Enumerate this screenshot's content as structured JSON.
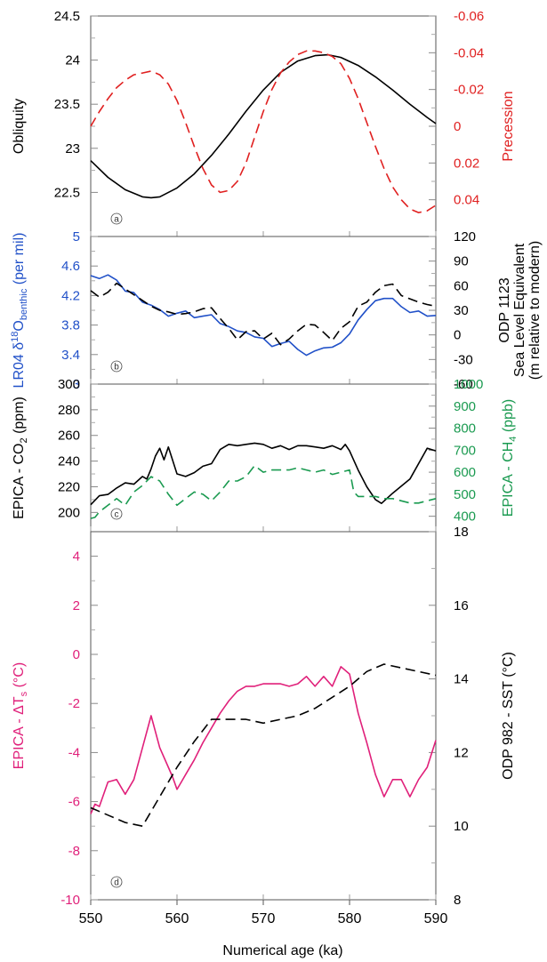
{
  "figure": {
    "xlabel": "Numerical age (ka)",
    "xlim": [
      550,
      590
    ],
    "xticks": [
      550,
      560,
      570,
      580,
      590
    ]
  },
  "chart_data": [
    {
      "type": "line",
      "panel_label": "a",
      "xlim": [
        550,
        590
      ],
      "left_axis": {
        "label": "Obliquity",
        "color": "#000000",
        "lim": [
          22.0,
          24.5
        ],
        "inverted": false,
        "ticks": [
          "22.5",
          "23",
          "23.5",
          "24",
          "24.5"
        ],
        "tick_values": [
          22.5,
          23.0,
          23.5,
          24.0,
          24.5
        ]
      },
      "right_axis": {
        "label": "Precession",
        "color": "#e02020",
        "lim": [
          0.06,
          -0.06
        ],
        "inverted": true,
        "ticks": [
          "-0.06",
          "-0.04",
          "-0.02",
          "0",
          "0.02",
          "0.04"
        ],
        "tick_values": [
          -0.06,
          -0.04,
          -0.02,
          0.0,
          0.02,
          0.04
        ]
      },
      "series": [
        {
          "axis": "left",
          "color": "#000000",
          "dash": "solid",
          "x": [
            550,
            552,
            554,
            556,
            557,
            558,
            560,
            562,
            564,
            566,
            568,
            570,
            572,
            574,
            576,
            577.5,
            579,
            581,
            583,
            585,
            587,
            589,
            590
          ],
          "y": [
            22.86,
            22.67,
            22.53,
            22.45,
            22.44,
            22.45,
            22.55,
            22.71,
            22.92,
            23.16,
            23.42,
            23.66,
            23.86,
            23.99,
            24.05,
            24.06,
            24.03,
            23.94,
            23.81,
            23.66,
            23.5,
            23.35,
            23.28
          ]
        },
        {
          "axis": "right",
          "color": "#e02020",
          "dash": "dashed",
          "x": [
            550,
            551,
            552,
            553,
            554,
            555,
            556,
            557,
            558,
            559,
            560,
            561,
            562,
            563,
            564,
            565,
            566,
            567,
            568,
            569,
            570,
            571,
            572,
            573,
            574,
            575,
            576,
            577,
            578,
            579,
            580,
            581,
            582,
            583,
            584,
            585,
            586,
            587,
            588,
            589,
            590
          ],
          "y": [
            0.0,
            -0.008,
            -0.015,
            -0.021,
            -0.025,
            -0.028,
            -0.029,
            -0.03,
            -0.028,
            -0.023,
            -0.014,
            -0.002,
            0.011,
            0.023,
            0.032,
            0.036,
            0.035,
            0.03,
            0.02,
            0.006,
            -0.008,
            -0.02,
            -0.029,
            -0.035,
            -0.039,
            -0.041,
            -0.041,
            -0.04,
            -0.038,
            -0.034,
            -0.026,
            -0.015,
            -0.002,
            0.011,
            0.023,
            0.033,
            0.04,
            0.045,
            0.047,
            0.046,
            0.043
          ]
        }
      ]
    },
    {
      "type": "line",
      "panel_label": "b",
      "xlim": [
        550,
        590
      ],
      "left_axis": {
        "label": "LR04 δ18Obenthic (per mil)",
        "label_parts": [
          "LR04 δ",
          "18",
          "O",
          "benthic",
          " (per mil)"
        ],
        "color": "#2050c8",
        "lim": [
          3.0,
          5.0
        ],
        "inverted": true,
        "ticks": [
          "3",
          "3.4",
          "3.8",
          "4.2",
          "4.6",
          "5"
        ],
        "tick_values": [
          3.0,
          3.4,
          3.8,
          4.2,
          4.6,
          5.0
        ]
      },
      "right_axis": {
        "label": "ODP 1123 Sea Level Equivalent (m relative to modern)",
        "label_lines": [
          "ODP 1123",
          "Sea Level Equivalent",
          "(m relative to modern)"
        ],
        "color": "#000000",
        "lim": [
          -60,
          120
        ],
        "inverted": true,
        "ticks": [
          "-60",
          "-30",
          "0",
          "30",
          "60",
          "90",
          "120"
        ],
        "tick_values": [
          -60,
          -30,
          0,
          30,
          60,
          90,
          120
        ]
      },
      "series": [
        {
          "axis": "left",
          "color": "#2050c8",
          "dash": "solid",
          "x": [
            550,
            551,
            552,
            553,
            554,
            555,
            556,
            557,
            558,
            559,
            560,
            561,
            562,
            563,
            564,
            565,
            566,
            567,
            568,
            569,
            570,
            571,
            572,
            573,
            574,
            575,
            576,
            577,
            578,
            579,
            580,
            581,
            582,
            583,
            584,
            585,
            586,
            587,
            588,
            589,
            590
          ],
          "y": [
            4.47,
            4.43,
            4.48,
            4.41,
            4.26,
            4.24,
            4.11,
            4.07,
            4.01,
            3.92,
            3.96,
            3.99,
            3.9,
            3.92,
            3.94,
            3.82,
            3.78,
            3.72,
            3.7,
            3.64,
            3.62,
            3.51,
            3.55,
            3.58,
            3.47,
            3.39,
            3.45,
            3.49,
            3.5,
            3.56,
            3.68,
            3.87,
            4.01,
            4.13,
            4.16,
            4.16,
            4.05,
            3.97,
            3.99,
            3.92,
            3.93
          ]
        },
        {
          "axis": "right",
          "color": "#000000",
          "dash": "dashed",
          "x": [
            550,
            551,
            552,
            553,
            554,
            555,
            556,
            557,
            558,
            559,
            560,
            561,
            562,
            563,
            564,
            565,
            566,
            567,
            568,
            569,
            570,
            571,
            572,
            573,
            574,
            575,
            576,
            577,
            578,
            579,
            580,
            581,
            582,
            583,
            584,
            585,
            586,
            587,
            588,
            589,
            590
          ],
          "y": [
            54,
            46,
            52,
            63,
            56,
            49,
            42,
            35,
            30,
            28,
            25,
            26,
            28,
            32,
            33,
            20,
            8,
            -6,
            4,
            5,
            -5,
            2,
            -12,
            -5,
            5,
            13,
            12,
            3,
            -7,
            8,
            16,
            35,
            40,
            52,
            60,
            62,
            48,
            44,
            40,
            37,
            35
          ]
        }
      ]
    },
    {
      "type": "line",
      "panel_label": "c",
      "xlim": [
        550,
        590
      ],
      "left_axis": {
        "label": "EPICA - CO2 (ppm)",
        "label_parts": [
          "EPICA - CO",
          "2",
          " (ppm)"
        ],
        "color": "#000000",
        "lim": [
          185,
          300
        ],
        "inverted": false,
        "ticks": [
          "200",
          "220",
          "240",
          "260",
          "280",
          "300"
        ],
        "tick_values": [
          200,
          220,
          240,
          260,
          280,
          300
        ]
      },
      "right_axis": {
        "label": "EPICA - CH4 (ppb)",
        "label_parts": [
          "EPICA - CH",
          "4",
          " (ppb)"
        ],
        "color": "#1a9a50",
        "lim": [
          330,
          1000
        ],
        "inverted": false,
        "ticks": [
          "400",
          "500",
          "600",
          "700",
          "800",
          "900",
          "1000"
        ],
        "tick_values": [
          400,
          500,
          600,
          700,
          800,
          900,
          1000
        ]
      },
      "series": [
        {
          "axis": "left",
          "color": "#000000",
          "dash": "solid",
          "x": [
            550,
            551,
            552,
            553,
            554,
            555,
            556,
            556.5,
            557,
            557.5,
            558,
            558.5,
            559,
            560,
            561,
            562,
            563,
            564,
            565,
            566,
            567,
            568,
            569,
            570,
            571,
            572,
            573,
            574,
            575,
            576,
            577,
            578,
            579,
            579.5,
            580,
            581,
            582,
            583,
            583.7,
            585,
            587,
            589,
            590
          ],
          "y": [
            206,
            213,
            214,
            219,
            223,
            222,
            228,
            226,
            234,
            244,
            250,
            241,
            251,
            230,
            228,
            231,
            236,
            238,
            249,
            253,
            252,
            253,
            254,
            253,
            250,
            252,
            249,
            252,
            252,
            251,
            250,
            252,
            249,
            253,
            248,
            233,
            220,
            210,
            207,
            215,
            226,
            250,
            248
          ]
        },
        {
          "axis": "right",
          "color": "#1a9a50",
          "dash": "dashed",
          "x": [
            550,
            550.5,
            551,
            552,
            553,
            554,
            555,
            556,
            557,
            558,
            559,
            560,
            561,
            562,
            563,
            564,
            565,
            566,
            567,
            568,
            569,
            570,
            571,
            572,
            573,
            574,
            575,
            576,
            577,
            578,
            579,
            580,
            580.5,
            581,
            582,
            583,
            584,
            585,
            586,
            587,
            588,
            589,
            590
          ],
          "y": [
            390,
            395,
            420,
            450,
            480,
            450,
            510,
            540,
            580,
            560,
            500,
            450,
            480,
            510,
            500,
            470,
            510,
            560,
            560,
            580,
            630,
            600,
            610,
            610,
            610,
            620,
            610,
            600,
            610,
            590,
            600,
            610,
            510,
            490,
            490,
            490,
            480,
            480,
            470,
            460,
            460,
            470,
            480
          ]
        }
      ]
    },
    {
      "type": "line",
      "panel_label": "d",
      "xlim": [
        550,
        590
      ],
      "left_axis": {
        "label": "EPICA - ΔTs (°C)",
        "label_parts": [
          "EPICA - ΔT",
          "s",
          " (°C)"
        ],
        "color": "#e0207a",
        "lim": [
          -10,
          5
        ],
        "inverted": false,
        "ticks": [
          "-10",
          "-8",
          "-6",
          "-4",
          "-2",
          "0",
          "2",
          "4"
        ],
        "tick_values": [
          -10,
          -8,
          -6,
          -4,
          -2,
          0,
          2,
          4
        ]
      },
      "right_axis": {
        "label": "ODP 982 - SST (°C)",
        "color": "#000000",
        "lim": [
          8,
          18
        ],
        "inverted": false,
        "ticks": [
          "8",
          "10",
          "12",
          "14",
          "16",
          "18"
        ],
        "tick_values": [
          8,
          10,
          12,
          14,
          16,
          18
        ]
      },
      "series": [
        {
          "axis": "left",
          "color": "#e0207a",
          "dash": "solid",
          "x": [
            550,
            550.5,
            551,
            552,
            553,
            554,
            555,
            556,
            557,
            558,
            559,
            559.5,
            560,
            560.5,
            561,
            562,
            563,
            564,
            565,
            566,
            567,
            568,
            569,
            570,
            571,
            572,
            573,
            574,
            575,
            576,
            577,
            578,
            579,
            580,
            581,
            582,
            583,
            584,
            585,
            586,
            587,
            588,
            589,
            590
          ],
          "y": [
            -6.5,
            -6.1,
            -6.2,
            -5.2,
            -5.1,
            -5.7,
            -5.1,
            -3.8,
            -2.5,
            -3.8,
            -4.6,
            -5.0,
            -5.5,
            -5.2,
            -4.9,
            -4.3,
            -3.6,
            -3.0,
            -2.4,
            -1.9,
            -1.5,
            -1.3,
            -1.3,
            -1.2,
            -1.2,
            -1.2,
            -1.3,
            -1.2,
            -0.9,
            -1.3,
            -0.9,
            -1.3,
            -0.5,
            -0.8,
            -2.4,
            -3.6,
            -4.9,
            -5.8,
            -5.1,
            -5.1,
            -5.8,
            -5.1,
            -4.6,
            -3.5
          ]
        },
        {
          "axis": "right",
          "color": "#000000",
          "dash": "dashed",
          "x": [
            550,
            552,
            554,
            556,
            558,
            560,
            562,
            564,
            566,
            568,
            570,
            572,
            574,
            576,
            578,
            580,
            582,
            584,
            586,
            588,
            590
          ],
          "y": [
            10.5,
            10.3,
            10.1,
            10.0,
            10.8,
            11.6,
            12.3,
            12.9,
            12.9,
            12.9,
            12.8,
            12.9,
            13.0,
            13.2,
            13.5,
            13.8,
            14.2,
            14.4,
            14.3,
            14.2,
            14.1
          ]
        }
      ]
    }
  ]
}
